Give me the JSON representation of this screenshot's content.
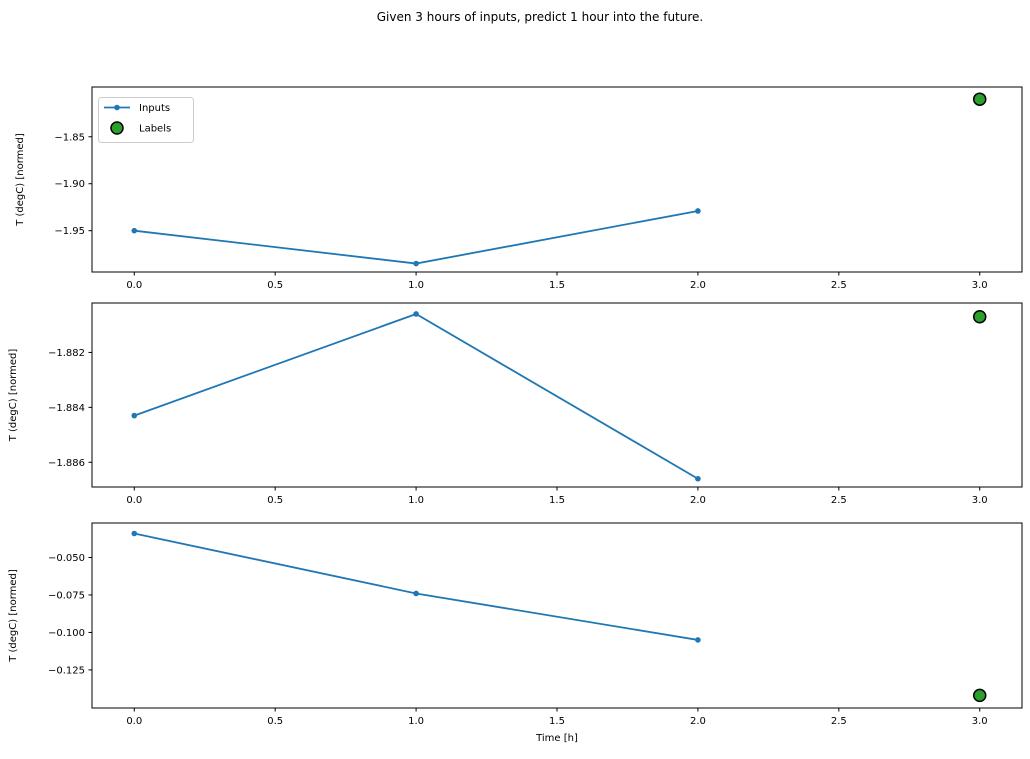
{
  "figure": {
    "title": "Given 3 hours of inputs, predict 1 hour into the future.",
    "background": "#ffffff"
  },
  "colors": {
    "inputs_line": "#1f77b4",
    "labels_marker_fill": "#2ca02c",
    "labels_marker_edge": "#000000",
    "axis": "#000000",
    "text": "#000000",
    "legend_border": "#cccccc",
    "legend_bg": "#ffffff"
  },
  "legend": {
    "items": [
      {
        "label": "Inputs",
        "sample": "line-with-dot-marker"
      },
      {
        "label": "Labels",
        "sample": "green-circle-marker"
      }
    ]
  },
  "x_axis": {
    "label": "Time [h]",
    "tick_labels": [
      "0.0",
      "0.5",
      "1.0",
      "1.5",
      "2.0",
      "2.5",
      "3.0"
    ]
  },
  "chart_data": [
    {
      "type": "line",
      "ylabel": "T (degC) [normed]",
      "xlabel": "",
      "series": [
        {
          "name": "Inputs",
          "style": "line+dot",
          "x": [
            0,
            1,
            2
          ],
          "y": [
            -1.95,
            -1.985,
            -1.929
          ]
        },
        {
          "name": "Labels",
          "style": "scatter",
          "x": [
            3
          ],
          "y": [
            -1.81
          ]
        }
      ],
      "xlim": [
        -0.15,
        3.15
      ],
      "ylim": [
        -1.994,
        -1.797
      ],
      "xticks": [
        0.0,
        0.5,
        1.0,
        1.5,
        2.0,
        2.5,
        3.0
      ],
      "xtick_labels": [
        "0.0",
        "0.5",
        "1.0",
        "1.5",
        "2.0",
        "2.5",
        "3.0"
      ],
      "yticks": [
        -1.85,
        -1.9,
        -1.95
      ],
      "ytick_labels": [
        "−1.85",
        "−1.90",
        "−1.95"
      ],
      "show_legend": true,
      "grid": false
    },
    {
      "type": "line",
      "ylabel": "T (degC) [normed]",
      "xlabel": "",
      "series": [
        {
          "name": "Inputs",
          "style": "line+dot",
          "x": [
            0,
            1,
            2
          ],
          "y": [
            -1.8843,
            -1.8806,
            -1.8866
          ]
        },
        {
          "name": "Labels",
          "style": "scatter",
          "x": [
            3
          ],
          "y": [
            -1.8807
          ]
        }
      ],
      "xlim": [
        -0.15,
        3.15
      ],
      "ylim": [
        -1.8869,
        -1.8802
      ],
      "xticks": [
        0.0,
        0.5,
        1.0,
        1.5,
        2.0,
        2.5,
        3.0
      ],
      "xtick_labels": [
        "0.0",
        "0.5",
        "1.0",
        "1.5",
        "2.0",
        "2.5",
        "3.0"
      ],
      "yticks": [
        -1.882,
        -1.884,
        -1.886
      ],
      "ytick_labels": [
        "−1.882",
        "−1.884",
        "−1.886"
      ],
      "show_legend": false,
      "grid": false
    },
    {
      "type": "line",
      "ylabel": "T (degC) [normed]",
      "xlabel": "Time [h]",
      "series": [
        {
          "name": "Inputs",
          "style": "line+dot",
          "x": [
            0,
            1,
            2
          ],
          "y": [
            -0.034,
            -0.074,
            -0.105
          ]
        },
        {
          "name": "Labels",
          "style": "scatter",
          "x": [
            3
          ],
          "y": [
            -0.142
          ]
        }
      ],
      "xlim": [
        -0.15,
        3.15
      ],
      "ylim": [
        -0.1504,
        -0.027
      ],
      "xticks": [
        0.0,
        0.5,
        1.0,
        1.5,
        2.0,
        2.5,
        3.0
      ],
      "xtick_labels": [
        "0.0",
        "0.5",
        "1.0",
        "1.5",
        "2.0",
        "2.5",
        "3.0"
      ],
      "yticks": [
        -0.05,
        -0.075,
        -0.1,
        -0.125
      ],
      "ytick_labels": [
        "−0.050",
        "−0.075",
        "−0.100",
        "−0.125"
      ],
      "show_legend": false,
      "grid": false
    }
  ]
}
